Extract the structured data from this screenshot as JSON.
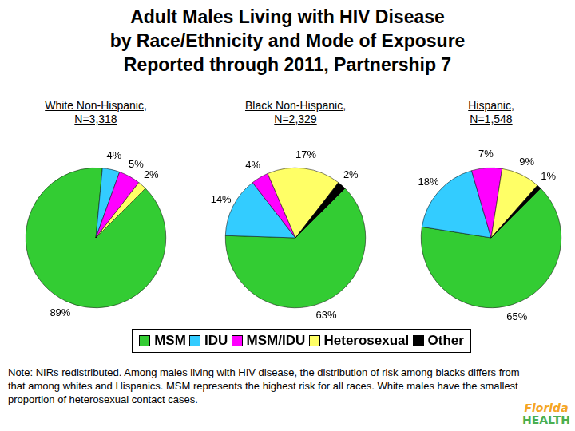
{
  "title": [
    "Adult Males Living with HIV Disease",
    "by Race/Ethnicity and Mode of Exposure",
    "Reported through 2011, Partnership 7"
  ],
  "chart_data": [
    {
      "type": "pie",
      "title": [
        "White Non-Hispanic,",
        "N=3,318"
      ],
      "categories": [
        "MSM",
        "IDU",
        "MSM/IDU",
        "Heterosexual",
        "Other"
      ],
      "values": [
        89,
        4,
        5,
        2,
        null
      ],
      "value_labels": [
        "89%",
        "4%",
        "5%",
        "2%",
        null
      ],
      "colors": [
        "#33cc33",
        "#33ccff",
        "#ff00ff",
        "#ffff66",
        "#000000"
      ],
      "data_labels": true
    },
    {
      "type": "pie",
      "title": [
        "Black Non-Hispanic,",
        "N=2,329"
      ],
      "categories": [
        "MSM",
        "IDU",
        "MSM/IDU",
        "Heterosexual",
        "Other"
      ],
      "values": [
        63,
        14,
        4,
        17,
        2
      ],
      "value_labels": [
        "63%",
        "14%",
        "4%",
        "17%",
        "2%"
      ],
      "colors": [
        "#33cc33",
        "#33ccff",
        "#ff00ff",
        "#ffff66",
        "#000000"
      ],
      "data_labels": true
    },
    {
      "type": "pie",
      "title": [
        "Hispanic,",
        "N=1,548"
      ],
      "categories": [
        "MSM",
        "IDU",
        "MSM/IDU",
        "Heterosexual",
        "Other"
      ],
      "values": [
        65,
        18,
        7,
        9,
        1
      ],
      "value_labels": [
        "65%",
        "18%",
        "7%",
        "9%",
        "1%"
      ],
      "colors": [
        "#33cc33",
        "#33ccff",
        "#ff00ff",
        "#ffff66",
        "#000000"
      ],
      "data_labels": true
    }
  ],
  "legend": "bottom",
  "note": "Note: NIRs redistributed.  Among males living with HIV disease, the distribution of risk among blacks differs from that among whites and Hispanics. MSM represents the highest risk for all races. White males have the smallest proportion of heterosexual contact cases.",
  "logo": [
    "Florida",
    "HEALTH"
  ]
}
